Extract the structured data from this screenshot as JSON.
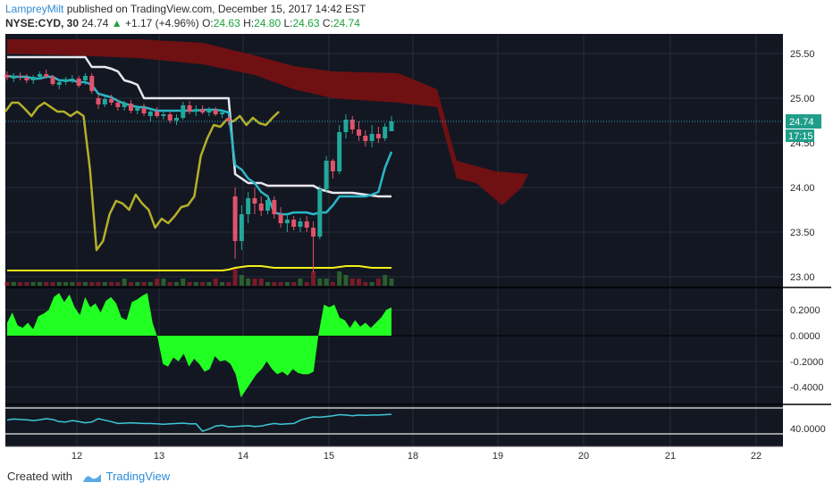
{
  "header": {
    "author": "LampreyMilt",
    "published_text": " published on TradingView.com, December 15, 2017 14:42 EST"
  },
  "symbol_bar": {
    "symbol": "NYSE:CYD, 30",
    "last": "24.74",
    "arrow": "▲",
    "change": "+1.17 (+4.96%)",
    "o_label": "O:",
    "o": "24.63",
    "h_label": "H:",
    "h": "24.80",
    "l_label": "L:",
    "l": "24.63",
    "c_label": "C:",
    "c": "24.74"
  },
  "footer": {
    "created_with": "Created with",
    "brand": "TradingView"
  },
  "colors": {
    "background": "#131722",
    "grid": "#2a2e39",
    "cloud": "#7a0f12",
    "up": "#22a89a",
    "down": "#e0536a",
    "base_line": "#e8e8ee",
    "conv_line": "#2ab7c7",
    "lag_line": "#b4b02a",
    "oscillator": "#22ff22",
    "rsi": "#3fc7d6",
    "volume_ma": "#f5ef1a",
    "price_badge": "#1f9e8a"
  },
  "chart_data": {
    "type": "candlestick",
    "x_axis_labels": [
      "12",
      "13",
      "14",
      "15",
      "18",
      "19",
      "20",
      "21",
      "22"
    ],
    "price_axis": {
      "ticks": [
        "25.50",
        "25.00",
        "24.50",
        "24.00",
        "23.50",
        "23.00"
      ],
      "range": [
        22.9,
        25.7
      ],
      "last_price_label": "24.74",
      "countdown_label": "17:15"
    },
    "oscillator_axis": {
      "ticks": [
        "0.2000",
        "0.0000",
        "-0.2000",
        "-0.4000"
      ],
      "range": [
        -0.52,
        0.36
      ]
    },
    "rsi_axis": {
      "ticks": [
        "40.0000"
      ],
      "range": [
        36,
        52
      ]
    },
    "candles": [
      [
        25.26,
        25.3,
        25.2,
        25.23
      ],
      [
        25.22,
        25.28,
        25.18,
        25.25
      ],
      [
        25.25,
        25.29,
        25.2,
        25.24
      ],
      [
        25.23,
        25.27,
        25.17,
        25.2
      ],
      [
        25.2,
        25.26,
        25.16,
        25.24
      ],
      [
        25.24,
        25.3,
        25.21,
        25.27
      ],
      [
        25.27,
        25.32,
        25.22,
        25.24
      ],
      [
        25.24,
        25.26,
        25.14,
        25.16
      ],
      [
        25.15,
        25.2,
        25.1,
        25.18
      ],
      [
        25.18,
        25.24,
        25.15,
        25.21
      ],
      [
        25.21,
        25.26,
        25.17,
        25.22
      ],
      [
        25.22,
        25.25,
        25.12,
        25.14
      ],
      [
        25.2,
        25.28,
        25.15,
        25.25
      ],
      [
        25.25,
        25.28,
        25.05,
        25.08
      ],
      [
        25.0,
        25.05,
        24.88,
        24.93
      ],
      [
        24.93,
        25.02,
        24.9,
        24.99
      ],
      [
        24.99,
        25.04,
        24.92,
        24.95
      ],
      [
        24.95,
        24.98,
        24.86,
        24.9
      ],
      [
        24.9,
        24.97,
        24.86,
        24.94
      ],
      [
        24.94,
        24.98,
        24.83,
        24.86
      ],
      [
        24.86,
        24.92,
        24.82,
        24.89
      ],
      [
        24.89,
        24.94,
        24.8,
        24.83
      ],
      [
        24.8,
        24.88,
        24.74,
        24.85
      ],
      [
        24.85,
        24.9,
        24.78,
        24.8
      ],
      [
        24.8,
        24.86,
        24.76,
        24.82
      ],
      [
        24.82,
        24.85,
        24.72,
        24.75
      ],
      [
        24.75,
        24.82,
        24.7,
        24.78
      ],
      [
        24.78,
        24.96,
        24.76,
        24.92
      ],
      [
        24.92,
        24.97,
        24.82,
        24.85
      ],
      [
        24.85,
        24.92,
        24.8,
        24.88
      ],
      [
        24.88,
        24.92,
        24.82,
        24.84
      ],
      [
        24.84,
        24.9,
        24.8,
        24.87
      ],
      [
        24.87,
        24.9,
        24.8,
        24.82
      ],
      [
        24.82,
        24.88,
        24.78,
        24.84
      ],
      [
        24.78,
        24.8,
        24.7,
        24.74
      ],
      [
        23.9,
        24.0,
        23.2,
        23.4
      ],
      [
        23.4,
        23.8,
        23.3,
        23.7
      ],
      [
        23.7,
        23.95,
        23.6,
        23.88
      ],
      [
        23.88,
        24.0,
        23.7,
        23.82
      ],
      [
        23.82,
        23.9,
        23.68,
        23.74
      ],
      [
        23.74,
        23.92,
        23.7,
        23.86
      ],
      [
        23.86,
        23.9,
        23.65,
        23.7
      ],
      [
        23.7,
        23.78,
        23.55,
        23.6
      ],
      [
        23.6,
        23.7,
        23.5,
        23.64
      ],
      [
        23.64,
        23.68,
        23.52,
        23.56
      ],
      [
        23.56,
        23.66,
        23.5,
        23.62
      ],
      [
        23.62,
        23.68,
        23.5,
        23.55
      ],
      [
        23.55,
        23.62,
        23.05,
        23.45
      ],
      [
        23.45,
        24.02,
        23.42,
        23.98
      ],
      [
        23.98,
        24.35,
        23.95,
        24.3
      ],
      [
        24.3,
        24.32,
        24.1,
        24.18
      ],
      [
        24.18,
        24.7,
        24.15,
        24.62
      ],
      [
        24.62,
        24.82,
        24.55,
        24.76
      ],
      [
        24.76,
        24.8,
        24.6,
        24.65
      ],
      [
        24.65,
        24.74,
        24.52,
        24.58
      ],
      [
        24.58,
        24.64,
        24.46,
        24.52
      ],
      [
        24.52,
        24.7,
        24.45,
        24.6
      ],
      [
        24.6,
        24.68,
        24.5,
        24.55
      ],
      [
        24.55,
        24.72,
        24.52,
        24.68
      ],
      [
        24.63,
        24.8,
        24.63,
        24.74
      ]
    ],
    "base_line": [
      25.46,
      25.46,
      25.46,
      25.46,
      25.46,
      25.46,
      25.46,
      25.46,
      25.46,
      25.46,
      25.46,
      25.46,
      25.46,
      25.35,
      25.35,
      25.35,
      25.33,
      25.3,
      25.2,
      25.18,
      25.15,
      25.0,
      25.0,
      25.0,
      25.0,
      25.0,
      25.0,
      25.0,
      25.0,
      25.0,
      25.0,
      25.0,
      25.0,
      25.0,
      25.0,
      24.15,
      24.1,
      24.05,
      24.05,
      24.05,
      24.02,
      24.02,
      24.02,
      24.02,
      24.02,
      24.02,
      24.02,
      24.02,
      23.98,
      23.96,
      23.94,
      23.94,
      23.94,
      23.94,
      23.93,
      23.92,
      23.91,
      23.9,
      23.9,
      23.9
    ],
    "conversion_line": [
      25.25,
      25.24,
      25.24,
      25.24,
      25.22,
      25.22,
      25.24,
      25.24,
      25.2,
      25.2,
      25.2,
      25.18,
      25.18,
      25.15,
      25.05,
      25.03,
      25.01,
      24.97,
      24.94,
      24.92,
      24.9,
      24.9,
      24.88,
      24.86,
      24.86,
      24.86,
      24.86,
      24.86,
      24.86,
      24.86,
      24.87,
      24.87,
      24.87,
      24.86,
      24.84,
      24.25,
      24.2,
      24.1,
      24.05,
      23.95,
      23.9,
      23.72,
      23.7,
      23.7,
      23.72,
      23.72,
      23.72,
      23.7,
      23.72,
      23.72,
      23.8,
      23.9,
      23.9,
      23.9,
      23.9,
      23.9,
      23.92,
      23.95,
      24.22,
      24.4
    ],
    "lagging_line": [
      24.85,
      24.95,
      24.95,
      24.88,
      24.8,
      24.9,
      24.95,
      24.9,
      24.85,
      24.85,
      24.8,
      24.85,
      24.8,
      24.2,
      23.3,
      23.4,
      23.7,
      23.85,
      23.82,
      23.75,
      23.92,
      23.82,
      23.75,
      23.55,
      23.65,
      23.6,
      23.68,
      23.78,
      23.8,
      23.9,
      24.35,
      24.55,
      24.7,
      24.68,
      24.76,
      24.74,
      24.8,
      24.7,
      24.78,
      24.72,
      24.7,
      24.78,
      24.85
    ],
    "cloud_top": [
      [
        0,
        25.66
      ],
      [
        20,
        25.66
      ],
      [
        30,
        25.62
      ],
      [
        38,
        25.48
      ],
      [
        44,
        25.36
      ],
      [
        50,
        25.3
      ],
      [
        60,
        25.28
      ],
      [
        66,
        25.1
      ],
      [
        69,
        24.3
      ],
      [
        75,
        24.18
      ],
      [
        80,
        24.15
      ]
    ],
    "cloud_bottom": [
      [
        0,
        25.5
      ],
      [
        10,
        25.48
      ],
      [
        20,
        25.45
      ],
      [
        30,
        25.38
      ],
      [
        38,
        25.26
      ],
      [
        44,
        25.1
      ],
      [
        50,
        25.0
      ],
      [
        60,
        24.95
      ],
      [
        66,
        24.9
      ],
      [
        69,
        24.1
      ],
      [
        72,
        24.05
      ],
      [
        76,
        23.8
      ],
      [
        79,
        24.0
      ],
      [
        80,
        24.15
      ]
    ],
    "volume": [
      1,
      1,
      1,
      1,
      1,
      1,
      1,
      1,
      1,
      1,
      1,
      1,
      1,
      1,
      1,
      1,
      1,
      1,
      2,
      1,
      1,
      1,
      1,
      2,
      2,
      1,
      1,
      2,
      1,
      1,
      1,
      1,
      2,
      1,
      1,
      5,
      3,
      2,
      2,
      2,
      1,
      1,
      1,
      1,
      1,
      2,
      1,
      4,
      2,
      2,
      1,
      4,
      3,
      2,
      2,
      1,
      1,
      2,
      3,
      2
    ],
    "volume_ma": [
      23.07,
      23.07,
      23.07,
      23.07,
      23.07,
      23.07,
      23.07,
      23.07,
      23.07,
      23.07,
      23.07,
      23.07,
      23.07,
      23.07,
      23.07,
      23.07,
      23.07,
      23.07,
      23.07,
      23.07,
      23.07,
      23.07,
      23.07,
      23.07,
      23.07,
      23.07,
      23.07,
      23.07,
      23.07,
      23.07,
      23.07,
      23.07,
      23.07,
      23.07,
      23.08,
      23.1,
      23.11,
      23.12,
      23.12,
      23.12,
      23.11,
      23.1,
      23.1,
      23.1,
      23.1,
      23.1,
      23.1,
      23.1,
      23.1,
      23.1,
      23.1,
      23.11,
      23.12,
      23.12,
      23.12,
      23.11,
      23.1,
      23.1,
      23.1,
      23.1
    ],
    "oscillator": [
      0.1,
      0.18,
      0.08,
      0.06,
      0.1,
      0.05,
      0.15,
      0.17,
      0.2,
      0.3,
      0.33,
      0.26,
      0.32,
      0.22,
      0.16,
      0.3,
      0.22,
      0.25,
      0.18,
      0.27,
      0.3,
      0.25,
      0.14,
      0.12,
      0.26,
      0.28,
      0.31,
      0.33,
      0.1,
      -0.02,
      -0.22,
      -0.24,
      -0.17,
      -0.2,
      -0.14,
      -0.24,
      -0.18,
      -0.22,
      -0.28,
      -0.26,
      -0.16,
      -0.2,
      -0.19,
      -0.22,
      -0.3,
      -0.48,
      -0.42,
      -0.36,
      -0.3,
      -0.26,
      -0.2,
      -0.26,
      -0.3,
      -0.28,
      -0.31,
      -0.26,
      -0.29,
      -0.3,
      -0.3,
      -0.28,
      0.02,
      0.24,
      0.22,
      0.24,
      0.14,
      0.12,
      0.06,
      0.12,
      0.07,
      0.1,
      0.06,
      0.1,
      0.14,
      0.2,
      0.22
    ],
    "rsi": [
      44.5,
      45.0,
      44.8,
      44.6,
      44.2,
      44.6,
      45.2,
      44.8,
      43.6,
      43.4,
      44.2,
      43.6,
      43.0,
      43.4,
      45.2,
      44.4,
      43.6,
      42.6,
      42.8,
      43.0,
      42.8,
      42.6,
      42.6,
      42.4,
      42.2,
      42.4,
      42.6,
      42.8,
      42.4,
      42.4,
      38.4,
      39.6,
      41.2,
      41.6,
      40.8,
      41.0,
      41.2,
      41.4,
      41.0,
      41.2,
      42.0,
      42.6,
      42.2,
      42.4,
      42.6,
      44.4,
      45.4,
      46.2,
      46.0,
      46.4,
      46.8,
      47.4,
      47.2,
      46.8,
      47.2,
      47.0,
      47.2,
      47.2,
      47.4,
      47.6
    ]
  }
}
